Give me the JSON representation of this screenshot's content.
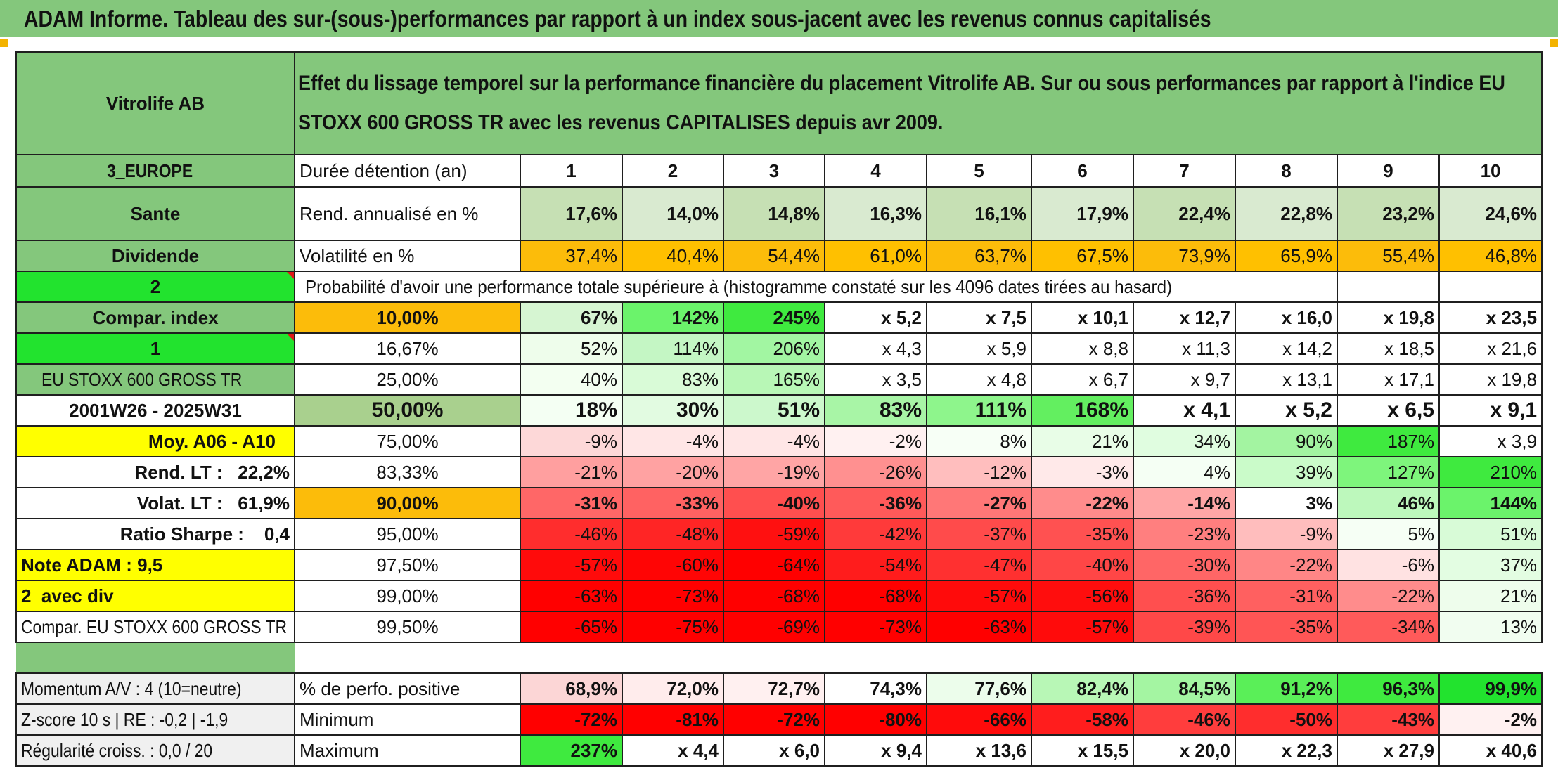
{
  "header": {
    "title": "ADAM Informe. Tableau des sur-(sous-)performances par rapport à un index sous-jacent avec les revenus connus capitalisés"
  },
  "info": {
    "name": "Vitrolife AB",
    "description": "Effet du lissage temporel sur la performance financière du placement Vitrolife AB. Sur ou sous performances par rapport à l'indice EU STOXX 600 GROSS TR avec les revenus CAPITALISES depuis avr 2009.",
    "region": "3_EUROPE",
    "sector": "Sante",
    "revenue_type": "Dividende",
    "value_2": "2",
    "compar_index_label": "Compar. index",
    "value_1": "1",
    "index_name": "EU STOXX 600 GROSS TR",
    "period": "2001W26 - 2025W31",
    "moy": "Moy. A06 - A10",
    "rend_lt_label": "Rend. LT :",
    "rend_lt_value": "22,2%",
    "volat_lt_label": "Volat. LT :",
    "volat_lt_value": "61,9%",
    "sharpe_label": "Ratio Sharpe :",
    "sharpe_value": "0,4",
    "note": "Note ADAM : 9,5",
    "avec_div": "2_avec div",
    "compar_name": "Compar. EU STOXX 600 GROSS TR",
    "momentum": "Momentum A/V : 4 (10=neutre)",
    "zscore": "Z-score 10 s | RE : -0,2 | -1,9",
    "regularite": "Régularité croiss. : 0,0 / 20"
  },
  "table": {
    "duree_label": "Durée détention (an)",
    "years": [
      "1",
      "2",
      "3",
      "4",
      "5",
      "6",
      "7",
      "8",
      "9",
      "10"
    ],
    "rend_label": "Rend. annualisé en %",
    "rend": [
      "17,6%",
      "14,0%",
      "14,8%",
      "16,3%",
      "16,1%",
      "17,9%",
      "22,4%",
      "22,8%",
      "23,2%",
      "24,6%"
    ],
    "vol_label": "Volatilité en %",
    "vol": [
      "37,4%",
      "40,4%",
      "54,4%",
      "61,0%",
      "63,7%",
      "67,5%",
      "73,9%",
      "65,9%",
      "55,4%",
      "46,8%"
    ],
    "prob_label": "Probabilité d'avoir une performance totale supérieure à (histogramme constaté sur les 4096 dates tirées au hasard)",
    "rows": [
      {
        "p": "10,00%",
        "v": [
          "67%",
          "142%",
          "245%",
          "x 5,2",
          "x 7,5",
          "x 10,1",
          "x 12,7",
          "x 16,0",
          "x 19,8",
          "x 23,5"
        ]
      },
      {
        "p": "16,67%",
        "v": [
          "52%",
          "114%",
          "206%",
          "x 4,3",
          "x 5,9",
          "x 8,8",
          "x 11,3",
          "x 14,2",
          "x 18,5",
          "x 21,6"
        ]
      },
      {
        "p": "25,00%",
        "v": [
          "40%",
          "83%",
          "165%",
          "x 3,5",
          "x 4,8",
          "x 6,7",
          "x 9,7",
          "x 13,1",
          "x 17,1",
          "x 19,8"
        ]
      },
      {
        "p": "50,00%",
        "v": [
          "18%",
          "30%",
          "51%",
          "83%",
          "111%",
          "168%",
          "x 4,1",
          "x 5,2",
          "x 6,5",
          "x 9,1"
        ]
      },
      {
        "p": "75,00%",
        "v": [
          "-9%",
          "-4%",
          "-4%",
          "-2%",
          "8%",
          "21%",
          "34%",
          "90%",
          "187%",
          "x 3,9"
        ]
      },
      {
        "p": "83,33%",
        "v": [
          "-21%",
          "-20%",
          "-19%",
          "-26%",
          "-12%",
          "-3%",
          "4%",
          "39%",
          "127%",
          "210%"
        ]
      },
      {
        "p": "90,00%",
        "v": [
          "-31%",
          "-33%",
          "-40%",
          "-36%",
          "-27%",
          "-22%",
          "-14%",
          "3%",
          "46%",
          "144%"
        ]
      },
      {
        "p": "95,00%",
        "v": [
          "-46%",
          "-48%",
          "-59%",
          "-42%",
          "-37%",
          "-35%",
          "-23%",
          "-9%",
          "5%",
          "51%"
        ]
      },
      {
        "p": "97,50%",
        "v": [
          "-57%",
          "-60%",
          "-64%",
          "-54%",
          "-47%",
          "-40%",
          "-30%",
          "-22%",
          "-6%",
          "37%"
        ]
      },
      {
        "p": "99,00%",
        "v": [
          "-63%",
          "-73%",
          "-68%",
          "-68%",
          "-57%",
          "-56%",
          "-36%",
          "-31%",
          "-22%",
          "21%"
        ]
      },
      {
        "p": "99,50%",
        "v": [
          "-65%",
          "-75%",
          "-69%",
          "-73%",
          "-63%",
          "-57%",
          "-39%",
          "-35%",
          "-34%",
          "13%"
        ]
      }
    ],
    "pos_label": "% de perfo. positive",
    "pos": [
      "68,9%",
      "72,0%",
      "72,7%",
      "74,3%",
      "77,6%",
      "82,4%",
      "84,5%",
      "91,2%",
      "96,3%",
      "99,9%"
    ],
    "min_label": "Minimum",
    "min": [
      "-72%",
      "-81%",
      "-72%",
      "-80%",
      "-66%",
      "-58%",
      "-46%",
      "-50%",
      "-43%",
      "-2%"
    ],
    "max_label": "Maximum",
    "max": [
      "237%",
      "x 4,4",
      "x 6,0",
      "x 9,4",
      "x 13,6",
      "x 15,5",
      "x 20,0",
      "x 22,3",
      "x 27,9",
      "x 40,6"
    ]
  },
  "colors": {
    "header_green": "#84c77c",
    "bright_green": "#22e32e",
    "yellow": "#ffff00",
    "orange": "#fcbc0a",
    "rend_green": "#c6e0b4",
    "text_red": "#e01818"
  }
}
